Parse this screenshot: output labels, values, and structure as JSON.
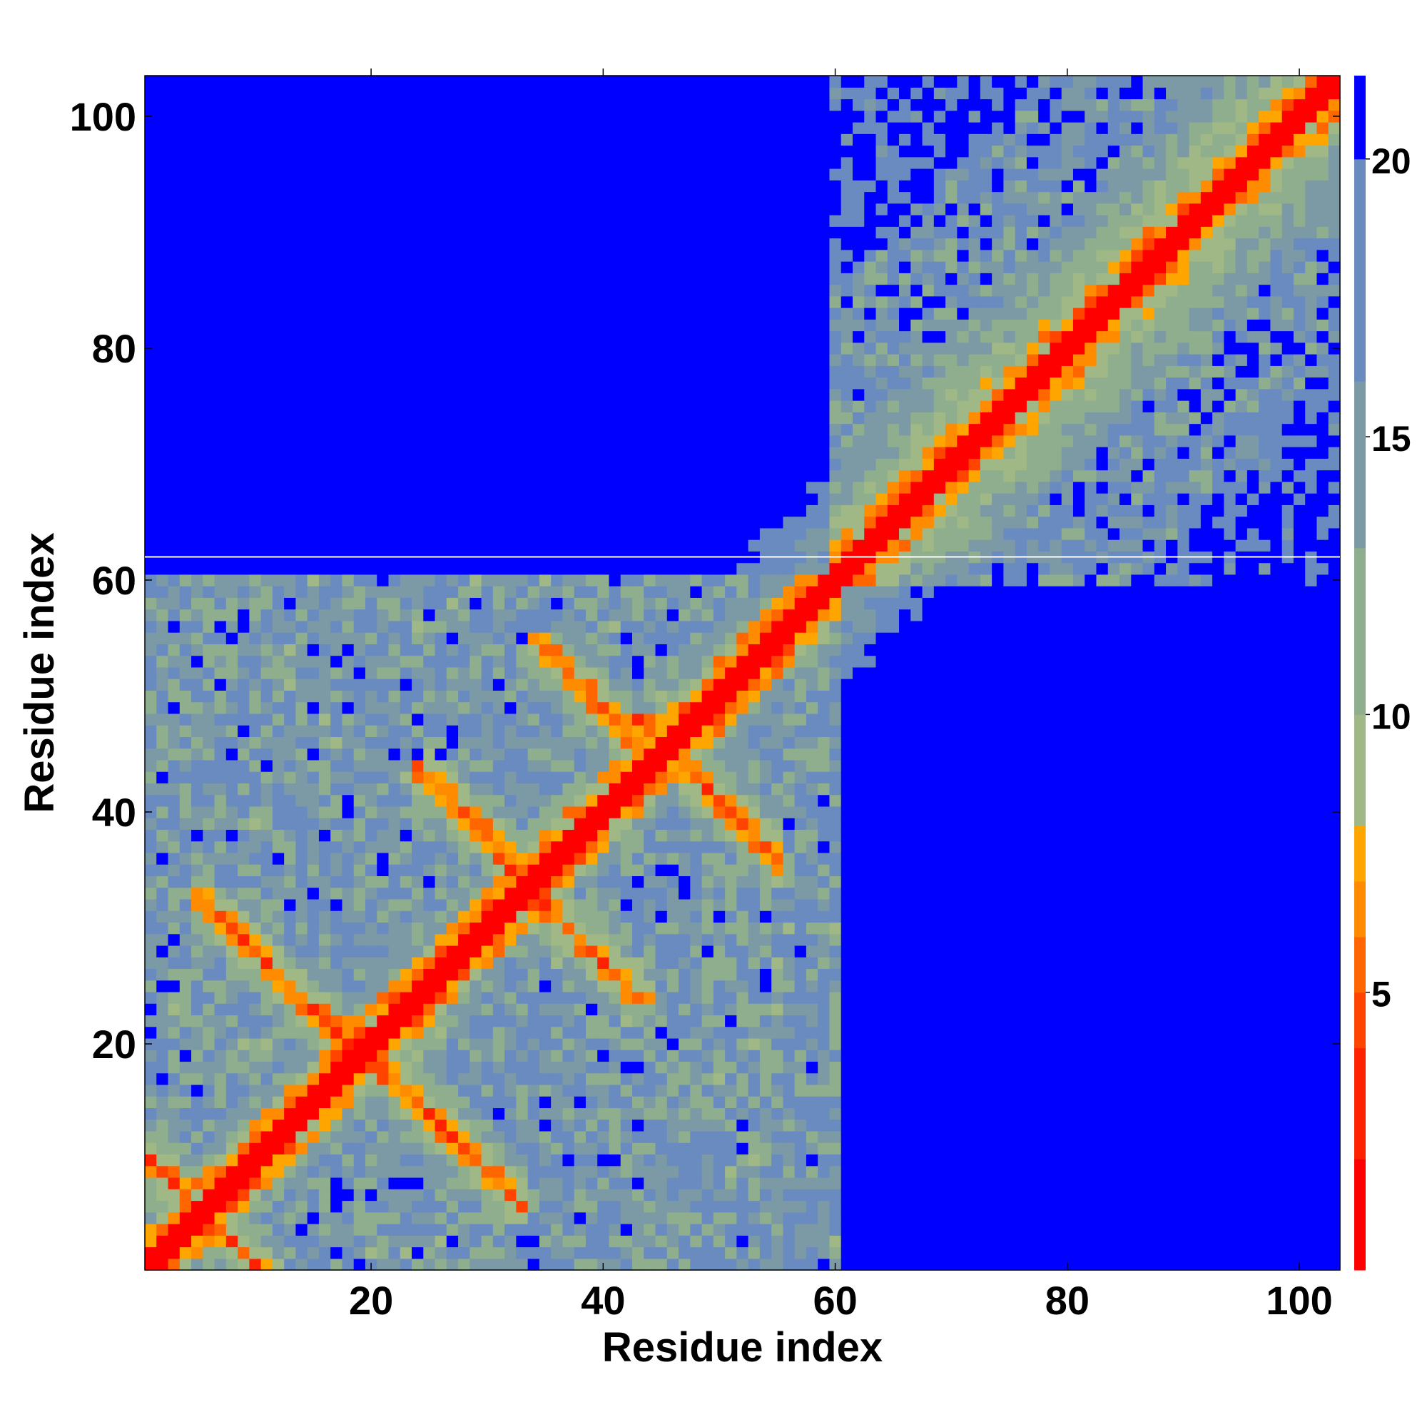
{
  "chart_data": {
    "type": "heatmap",
    "title": "",
    "xlabel": "Residue index",
    "ylabel": "Residue index",
    "n_residues": 103,
    "xlim": [
      1,
      103
    ],
    "ylim": [
      1,
      103
    ],
    "x_ticks": [
      20,
      40,
      60,
      80,
      100
    ],
    "y_ticks": [
      20,
      40,
      60,
      80,
      100
    ],
    "colorbar": {
      "ticks": [
        5,
        10,
        15,
        20
      ],
      "range": [
        0,
        21.5
      ],
      "colors": [
        {
          "from": 0,
          "to": 2,
          "color": "#ff0000"
        },
        {
          "from": 2,
          "to": 4,
          "color": "#ff2200"
        },
        {
          "from": 4,
          "to": 5,
          "color": "#ff4400"
        },
        {
          "from": 5,
          "to": 6,
          "color": "#ff6600"
        },
        {
          "from": 6,
          "to": 7,
          "color": "#ff8c00"
        },
        {
          "from": 7,
          "to": 8,
          "color": "#ffa500"
        },
        {
          "from": 8,
          "to": 10,
          "color": "#9fb886"
        },
        {
          "from": 10,
          "to": 13,
          "color": "#8fae8e"
        },
        {
          "from": 13,
          "to": 16,
          "color": "#7b9aa6"
        },
        {
          "from": 16,
          "to": 20,
          "color": "#6a8bbf"
        },
        {
          "from": 20,
          "to": 21.5,
          "color": "#0000ff"
        }
      ]
    },
    "grid": false,
    "legend": "colorbar-right",
    "contact_features": [
      {
        "kind": "diagonal-band",
        "distance_range": [
          0,
          8
        ]
      },
      {
        "kind": "antiparallel-strand-pair",
        "i_range": [
          1,
          10
        ],
        "j_range": [
          1,
          10
        ]
      },
      {
        "kind": "antiparallel-strand-pair",
        "i_range": [
          7,
          20
        ],
        "j_range": [
          19,
          31
        ]
      },
      {
        "kind": "antiparallel-strand-pair",
        "i_range": [
          19,
          31
        ],
        "j_range": [
          7,
          20
        ]
      },
      {
        "kind": "antiparallel-strand-pair",
        "i_range": [
          26,
          34
        ],
        "j_range": [
          33,
          42
        ]
      },
      {
        "kind": "antiparallel-strand-pair",
        "i_range": [
          33,
          42
        ],
        "j_range": [
          26,
          34
        ]
      },
      {
        "kind": "antiparallel-strand-pair",
        "i_range": [
          36,
          46
        ],
        "j_range": [
          45,
          53
        ]
      },
      {
        "kind": "antiparallel-strand-pair",
        "i_range": [
          45,
          53
        ],
        "j_range": [
          36,
          46
        ]
      },
      {
        "kind": "helix-region",
        "i_range": [
          60,
          103
        ],
        "j_range": [
          60,
          103
        ]
      },
      {
        "kind": "long-range-contacts",
        "i_range": [
          85,
          103
        ],
        "j_range": [
          85,
          103
        ]
      }
    ]
  }
}
